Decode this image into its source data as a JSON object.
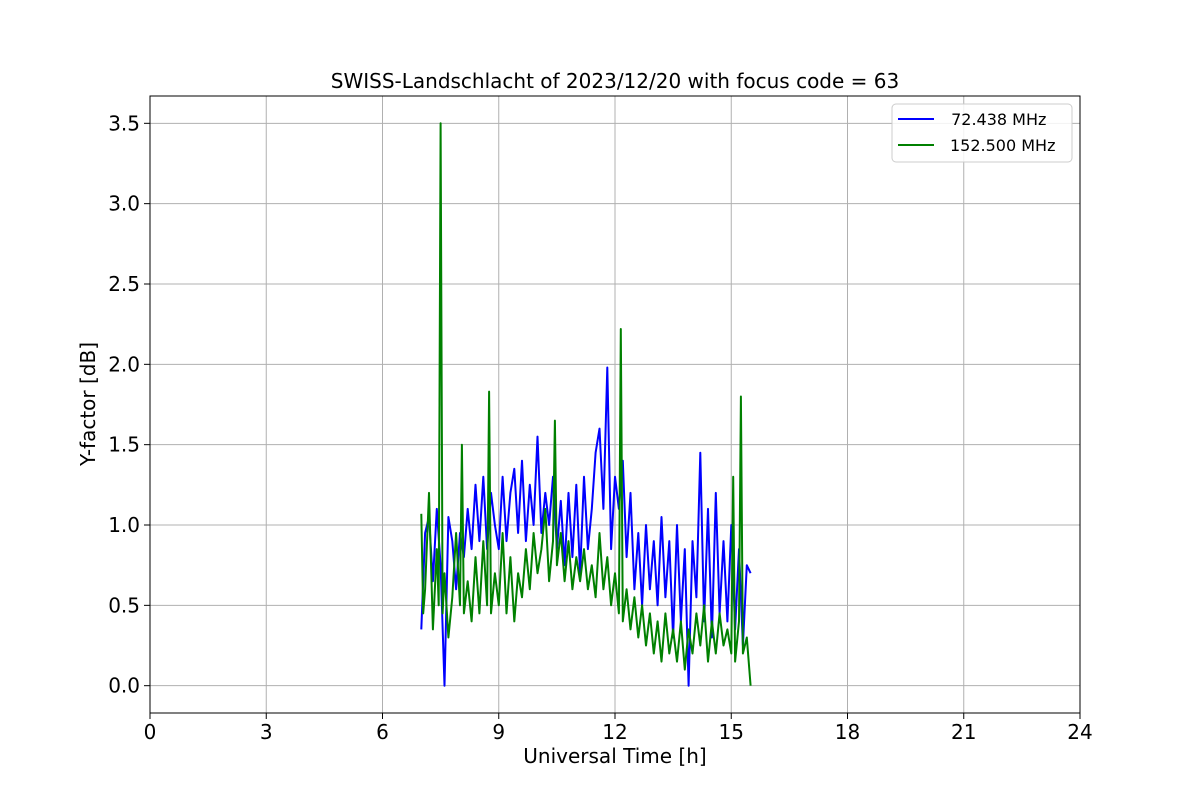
{
  "chart_data": {
    "type": "line",
    "title": "SWISS-Landschlacht of 2023/12/20 with focus code = 63",
    "xlabel": "Universal Time [h]",
    "ylabel": "Y-factor [dB]",
    "xlim": [
      0,
      24
    ],
    "ylim": [
      -0.17,
      3.67
    ],
    "xticks": [
      0,
      3,
      6,
      9,
      12,
      15,
      18,
      21,
      24
    ],
    "yticks": [
      0.0,
      0.5,
      1.0,
      1.5,
      2.0,
      2.5,
      3.0,
      3.5
    ],
    "xtick_labels": [
      "0",
      "3",
      "6",
      "9",
      "12",
      "15",
      "18",
      "21",
      "24"
    ],
    "ytick_labels": [
      "0.0",
      "0.5",
      "1.0",
      "1.5",
      "2.0",
      "2.5",
      "3.0",
      "3.5"
    ],
    "grid": true,
    "legend_position": "top-right",
    "series": [
      {
        "name": " 72.438 MHz",
        "color": "#0000ff",
        "x": [
          7.0,
          7.1,
          7.2,
          7.3,
          7.4,
          7.5,
          7.6,
          7.7,
          7.8,
          7.9,
          8.0,
          8.1,
          8.2,
          8.3,
          8.4,
          8.5,
          8.6,
          8.7,
          8.8,
          8.9,
          9.0,
          9.1,
          9.2,
          9.3,
          9.4,
          9.5,
          9.6,
          9.7,
          9.8,
          9.9,
          10.0,
          10.1,
          10.2,
          10.3,
          10.4,
          10.5,
          10.6,
          10.7,
          10.8,
          10.9,
          11.0,
          11.1,
          11.2,
          11.3,
          11.4,
          11.5,
          11.6,
          11.7,
          11.8,
          11.9,
          12.0,
          12.1,
          12.2,
          12.3,
          12.4,
          12.5,
          12.6,
          12.7,
          12.8,
          12.9,
          13.0,
          13.1,
          13.2,
          13.3,
          13.4,
          13.5,
          13.6,
          13.7,
          13.8,
          13.9,
          14.0,
          14.1,
          14.2,
          14.3,
          14.4,
          14.5,
          14.6,
          14.7,
          14.8,
          14.9,
          15.0,
          15.1,
          15.2,
          15.3,
          15.4,
          15.5
        ],
        "values": [
          0.35,
          0.95,
          1.05,
          0.65,
          1.1,
          0.75,
          0.0,
          1.05,
          0.9,
          0.6,
          0.95,
          0.8,
          1.1,
          0.85,
          1.25,
          0.9,
          1.3,
          0.85,
          1.2,
          1.0,
          0.85,
          1.3,
          0.9,
          1.2,
          1.35,
          0.95,
          1.4,
          0.9,
          1.25,
          1.0,
          1.55,
          0.95,
          1.2,
          1.0,
          1.3,
          0.85,
          1.15,
          0.75,
          1.2,
          0.8,
          1.25,
          0.7,
          1.3,
          0.85,
          1.1,
          1.45,
          1.6,
          1.1,
          1.98,
          0.85,
          1.3,
          1.1,
          1.4,
          0.8,
          1.2,
          0.6,
          0.95,
          0.5,
          1.0,
          0.6,
          0.9,
          0.5,
          1.05,
          0.55,
          0.9,
          0.3,
          1.0,
          0.4,
          0.85,
          0.0,
          0.9,
          0.55,
          1.45,
          0.4,
          1.1,
          0.3,
          1.2,
          0.45,
          0.9,
          0.4,
          1.0,
          0.35,
          0.85,
          0.25,
          0.75,
          0.7
        ]
      },
      {
        "name": "152.500 MHz",
        "color": "#008000",
        "x": [
          7.0,
          7.05,
          7.1,
          7.2,
          7.3,
          7.4,
          7.45,
          7.5,
          7.55,
          7.6,
          7.7,
          7.8,
          7.9,
          8.0,
          8.05,
          8.1,
          8.2,
          8.3,
          8.4,
          8.5,
          8.6,
          8.7,
          8.75,
          8.8,
          8.9,
          9.0,
          9.1,
          9.2,
          9.3,
          9.4,
          9.5,
          9.6,
          9.7,
          9.8,
          9.9,
          10.0,
          10.1,
          10.2,
          10.3,
          10.4,
          10.45,
          10.5,
          10.6,
          10.7,
          10.8,
          10.9,
          11.0,
          11.1,
          11.2,
          11.3,
          11.4,
          11.5,
          11.6,
          11.7,
          11.8,
          11.9,
          12.0,
          12.1,
          12.15,
          12.2,
          12.3,
          12.4,
          12.5,
          12.6,
          12.7,
          12.8,
          12.9,
          13.0,
          13.1,
          13.2,
          13.3,
          13.4,
          13.5,
          13.6,
          13.7,
          13.8,
          13.9,
          14.0,
          14.1,
          14.2,
          14.3,
          14.4,
          14.5,
          14.6,
          14.7,
          14.8,
          14.9,
          15.0,
          15.05,
          15.1,
          15.2,
          15.25,
          15.3,
          15.4,
          15.5
        ],
        "values": [
          1.07,
          0.45,
          0.6,
          1.2,
          0.35,
          0.85,
          0.5,
          3.5,
          0.45,
          0.7,
          0.3,
          0.55,
          0.95,
          0.5,
          1.5,
          0.45,
          0.65,
          0.4,
          0.8,
          0.45,
          0.9,
          0.5,
          1.83,
          0.45,
          0.7,
          0.5,
          0.95,
          0.45,
          0.8,
          0.4,
          0.7,
          0.55,
          0.85,
          0.6,
          0.95,
          0.7,
          0.85,
          1.1,
          0.65,
          0.9,
          1.65,
          0.75,
          0.95,
          0.65,
          0.9,
          0.6,
          0.8,
          0.65,
          0.85,
          0.6,
          0.75,
          0.55,
          0.95,
          0.6,
          0.8,
          0.5,
          0.7,
          0.45,
          2.22,
          0.4,
          0.6,
          0.35,
          0.55,
          0.3,
          0.5,
          0.25,
          0.45,
          0.2,
          0.4,
          0.15,
          0.45,
          0.2,
          0.35,
          0.15,
          0.4,
          0.1,
          0.35,
          0.2,
          0.45,
          0.25,
          0.5,
          0.15,
          0.4,
          0.2,
          0.45,
          0.25,
          0.35,
          0.2,
          1.3,
          0.15,
          0.4,
          1.8,
          0.2,
          0.3,
          0.0
        ]
      }
    ]
  }
}
